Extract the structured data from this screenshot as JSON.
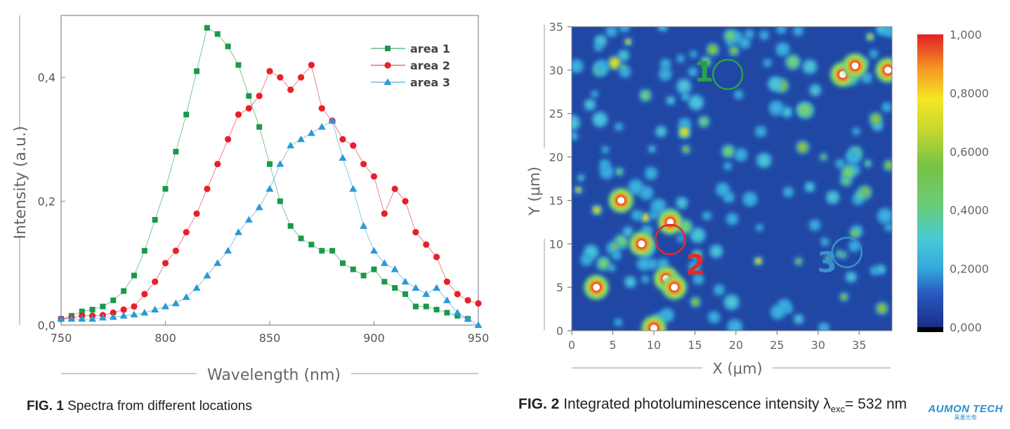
{
  "figure1": {
    "caption_label": "FIG. 1",
    "caption_text": "Spectra from different locations"
  },
  "figure2": {
    "caption_label": "FIG. 2",
    "caption_text_pre": "Integrated photoluminescence intensity λ",
    "caption_sub": "exc",
    "caption_text_post": "= 532 nm"
  },
  "logo": {
    "text": "AUMON TECH",
    "subtext": "昊量光电"
  },
  "colors": {
    "area1": "#1a9a4a",
    "area2": "#e8202a",
    "area3": "#2a9ad6",
    "marker1": "#2aa04a",
    "marker2": "#e22a2a",
    "marker3": "#3a92c8"
  },
  "chart_data": [
    {
      "type": "line",
      "xlabel": "Wavelength (nm)",
      "ylabel": "Intensity (a.u.)",
      "xlim": [
        750,
        950
      ],
      "ylim": [
        0,
        0.5
      ],
      "xticks": [
        750,
        800,
        850,
        900,
        950
      ],
      "xtick_labels": [
        "750",
        "800",
        "850",
        "900",
        "950"
      ],
      "yticks": [
        0,
        0.2,
        0.4
      ],
      "ytick_labels": [
        "0,0",
        "0,2",
        "0,4"
      ],
      "legend_position": "top-right",
      "series": [
        {
          "name": "area 1",
          "marker": "square",
          "x": [
            750,
            755,
            760,
            765,
            770,
            775,
            780,
            785,
            790,
            795,
            800,
            805,
            810,
            815,
            820,
            825,
            830,
            835,
            840,
            845,
            850,
            855,
            860,
            865,
            870,
            875,
            880,
            885,
            890,
            895,
            900,
            905,
            910,
            915,
            920,
            925,
            930,
            935,
            940,
            945
          ],
          "y": [
            0.01,
            0.015,
            0.022,
            0.025,
            0.03,
            0.04,
            0.055,
            0.08,
            0.12,
            0.17,
            0.22,
            0.28,
            0.34,
            0.41,
            0.48,
            0.47,
            0.45,
            0.42,
            0.37,
            0.32,
            0.26,
            0.2,
            0.16,
            0.14,
            0.13,
            0.12,
            0.12,
            0.1,
            0.09,
            0.08,
            0.09,
            0.07,
            0.06,
            0.05,
            0.03,
            0.03,
            0.025,
            0.02,
            0.015,
            0.01
          ]
        },
        {
          "name": "area 2",
          "marker": "circle",
          "x": [
            750,
            755,
            760,
            765,
            770,
            775,
            780,
            785,
            790,
            795,
            800,
            805,
            810,
            815,
            820,
            825,
            830,
            835,
            840,
            845,
            850,
            855,
            860,
            865,
            870,
            875,
            880,
            885,
            890,
            895,
            900,
            905,
            910,
            915,
            920,
            925,
            930,
            935,
            940,
            945,
            950
          ],
          "y": [
            0.01,
            0.012,
            0.015,
            0.015,
            0.016,
            0.02,
            0.025,
            0.03,
            0.05,
            0.07,
            0.1,
            0.12,
            0.15,
            0.18,
            0.22,
            0.26,
            0.3,
            0.34,
            0.35,
            0.37,
            0.41,
            0.4,
            0.38,
            0.4,
            0.42,
            0.35,
            0.33,
            0.3,
            0.29,
            0.26,
            0.24,
            0.18,
            0.22,
            0.2,
            0.15,
            0.13,
            0.11,
            0.07,
            0.05,
            0.04,
            0.035
          ]
        },
        {
          "name": "area 3",
          "marker": "triangle",
          "x": [
            750,
            755,
            760,
            765,
            770,
            775,
            780,
            785,
            790,
            795,
            800,
            805,
            810,
            815,
            820,
            825,
            830,
            835,
            840,
            845,
            850,
            855,
            860,
            865,
            870,
            875,
            880,
            885,
            890,
            895,
            900,
            905,
            910,
            915,
            920,
            925,
            930,
            935,
            940,
            945,
            950
          ],
          "y": [
            0.01,
            0.01,
            0.01,
            0.01,
            0.012,
            0.013,
            0.015,
            0.017,
            0.02,
            0.025,
            0.03,
            0.035,
            0.045,
            0.06,
            0.08,
            0.1,
            0.12,
            0.15,
            0.17,
            0.19,
            0.22,
            0.26,
            0.29,
            0.3,
            0.31,
            0.32,
            0.33,
            0.27,
            0.22,
            0.16,
            0.12,
            0.1,
            0.09,
            0.07,
            0.06,
            0.05,
            0.06,
            0.04,
            0.02,
            0.01,
            0.0
          ]
        }
      ]
    },
    {
      "type": "heatmap",
      "xlabel": "X (μm)",
      "ylabel": "Y (μm)",
      "xlim": [
        0,
        39
      ],
      "ylim": [
        0,
        35
      ],
      "xticks": [
        0,
        5,
        10,
        15,
        20,
        25,
        30,
        35
      ],
      "yticks": [
        0,
        5,
        10,
        15,
        20,
        25,
        30,
        35
      ],
      "colorbar_ticks": [
        "1,000",
        "0,8000",
        "0,6000",
        "0,4000",
        "0,2000",
        "0,000"
      ],
      "colorbar_range": [
        0,
        1
      ],
      "annotations": [
        {
          "label": "1",
          "x": 19,
          "y": 29.5,
          "color_key": "marker1"
        },
        {
          "label": "2",
          "x": 12,
          "y": 10.5,
          "color_key": "marker2"
        },
        {
          "label": "3",
          "x": 33.5,
          "y": 9,
          "color_key": "marker3"
        }
      ]
    }
  ]
}
